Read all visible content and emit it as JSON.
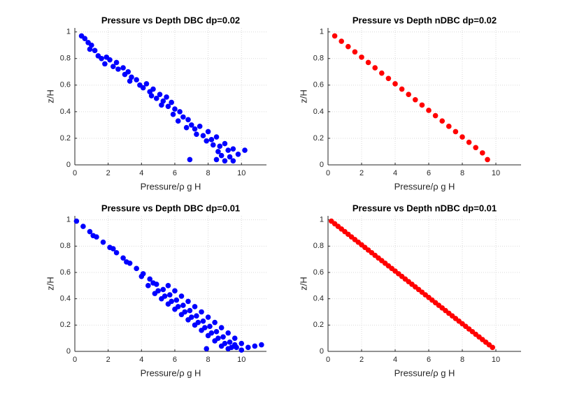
{
  "chart_data": [
    {
      "type": "scatter",
      "title": "Pressure vs Depth DBC dp=0.02",
      "xlabel": "Pressure/ρ g H",
      "ylabel": "z/H",
      "color": "#0000ff",
      "x": [
        0.4,
        0.6,
        0.8,
        1.0,
        0.9,
        1.2,
        1.4,
        1.6,
        1.9,
        2.1,
        1.8,
        2.3,
        2.5,
        2.6,
        2.9,
        3.0,
        3.2,
        3.4,
        3.3,
        3.7,
        3.9,
        4.1,
        4.3,
        4.5,
        4.7,
        4.6,
        4.9,
        5.1,
        5.3,
        5.5,
        5.2,
        5.6,
        5.8,
        6.0,
        5.9,
        6.3,
        6.5,
        6.2,
        6.8,
        7.0,
        6.7,
        7.2,
        7.5,
        7.3,
        7.7,
        8.0,
        7.9,
        8.2,
        8.5,
        8.3,
        8.7,
        9.0,
        8.6,
        9.2,
        9.5,
        8.8,
        9.3,
        9.0,
        9.5,
        8.5,
        6.9,
        10.2,
        9.8
      ],
      "values": [
        0.97,
        0.95,
        0.92,
        0.9,
        0.87,
        0.86,
        0.82,
        0.8,
        0.81,
        0.79,
        0.76,
        0.74,
        0.77,
        0.72,
        0.73,
        0.68,
        0.7,
        0.66,
        0.63,
        0.64,
        0.6,
        0.58,
        0.61,
        0.55,
        0.57,
        0.52,
        0.5,
        0.53,
        0.48,
        0.51,
        0.45,
        0.44,
        0.47,
        0.42,
        0.38,
        0.4,
        0.36,
        0.33,
        0.34,
        0.3,
        0.28,
        0.27,
        0.29,
        0.23,
        0.22,
        0.25,
        0.18,
        0.19,
        0.21,
        0.15,
        0.14,
        0.16,
        0.1,
        0.11,
        0.12,
        0.07,
        0.06,
        0.03,
        0.03,
        0.04,
        0.04,
        0.11,
        0.08
      ],
      "xlim": [
        0,
        11.5
      ],
      "ylim": [
        0,
        1.03
      ],
      "xticks": [
        0,
        2,
        4,
        6,
        8,
        10
      ],
      "yticks": [
        0,
        0.2,
        0.4,
        0.6,
        0.8,
        1
      ],
      "grid": true
    },
    {
      "type": "scatter",
      "title": "Pressure vs Depth nDBC dp=0.02",
      "xlabel": "Pressure/ρ g H",
      "ylabel": "z/H",
      "color": "#ff0000",
      "x": [
        0.4,
        0.8,
        1.2,
        1.6,
        2.0,
        2.4,
        2.8,
        3.2,
        3.6,
        4.0,
        4.4,
        4.8,
        5.2,
        5.6,
        6.0,
        6.4,
        6.8,
        7.2,
        7.6,
        8.0,
        8.4,
        8.8,
        9.2,
        9.5
      ],
      "values": [
        0.97,
        0.93,
        0.89,
        0.85,
        0.81,
        0.77,
        0.73,
        0.69,
        0.65,
        0.61,
        0.57,
        0.53,
        0.49,
        0.45,
        0.41,
        0.37,
        0.33,
        0.29,
        0.25,
        0.21,
        0.17,
        0.13,
        0.09,
        0.04
      ],
      "xlim": [
        0,
        11.5
      ],
      "ylim": [
        0,
        1.03
      ],
      "xticks": [
        0,
        2,
        4,
        6,
        8,
        10
      ],
      "yticks": [
        0,
        0.2,
        0.4,
        0.6,
        0.8,
        1
      ],
      "grid": true
    },
    {
      "type": "scatter",
      "title": "Pressure vs Depth DBC dp=0.01",
      "xlabel": "Pressure/ρ g H",
      "ylabel": "z/H",
      "color": "#0000ff",
      "x": [
        0.1,
        0.5,
        0.9,
        1.3,
        1.7,
        2.1,
        2.5,
        2.9,
        3.3,
        3.7,
        4.1,
        4.5,
        4.9,
        5.3,
        5.7,
        6.1,
        6.5,
        6.9,
        7.3,
        7.7,
        8.1,
        8.5,
        8.9,
        9.3,
        9.7,
        5.6,
        6.0,
        6.4,
        6.8,
        7.2,
        7.6,
        8.0,
        8.4,
        8.8,
        9.2,
        9.6,
        10.0,
        10.4,
        11.2,
        10.8,
        4.4,
        4.8,
        5.2,
        5.6,
        6.0,
        6.4,
        6.8,
        7.2,
        7.6,
        8.0,
        7.9,
        8.4,
        8.8,
        9.2,
        10.0,
        9.6,
        5.0,
        5.4,
        5.8,
        6.2,
        6.6,
        7.0,
        7.4,
        7.8,
        8.2,
        8.6,
        9.0,
        9.4,
        1.1,
        2.3,
        3.1,
        4.0,
        4.7
      ],
      "values": [
        0.99,
        0.95,
        0.91,
        0.87,
        0.83,
        0.79,
        0.75,
        0.71,
        0.67,
        0.63,
        0.59,
        0.55,
        0.51,
        0.47,
        0.43,
        0.39,
        0.35,
        0.31,
        0.27,
        0.23,
        0.19,
        0.15,
        0.11,
        0.07,
        0.03,
        0.5,
        0.46,
        0.42,
        0.38,
        0.34,
        0.3,
        0.26,
        0.22,
        0.18,
        0.14,
        0.1,
        0.06,
        0.03,
        0.05,
        0.04,
        0.5,
        0.44,
        0.4,
        0.36,
        0.32,
        0.28,
        0.24,
        0.2,
        0.16,
        0.12,
        0.02,
        0.08,
        0.04,
        0.02,
        0.01,
        0.05,
        0.46,
        0.42,
        0.38,
        0.34,
        0.3,
        0.26,
        0.22,
        0.18,
        0.14,
        0.1,
        0.06,
        0.03,
        0.88,
        0.78,
        0.68,
        0.57,
        0.52
      ],
      "xlim": [
        0,
        11.5
      ],
      "ylim": [
        0,
        1.03
      ],
      "xticks": [
        0,
        2,
        4,
        6,
        8,
        10
      ],
      "yticks": [
        0,
        0.2,
        0.4,
        0.6,
        0.8,
        1
      ],
      "grid": true
    },
    {
      "type": "scatter",
      "title": "Pressure vs Depth nDBC dp=0.01",
      "xlabel": "Pressure/ρ g H",
      "ylabel": "z/H",
      "color": "#ff0000",
      "x": [
        0.2,
        0.4,
        0.6,
        0.8,
        1.0,
        1.2,
        1.4,
        1.6,
        1.8,
        2.0,
        2.2,
        2.4,
        2.6,
        2.8,
        3.0,
        3.2,
        3.4,
        3.6,
        3.8,
        4.0,
        4.2,
        4.4,
        4.6,
        4.8,
        5.0,
        5.2,
        5.4,
        5.6,
        5.8,
        6.0,
        6.2,
        6.4,
        6.6,
        6.8,
        7.0,
        7.2,
        7.4,
        7.6,
        7.8,
        8.0,
        8.2,
        8.4,
        8.6,
        8.8,
        9.0,
        9.2,
        9.4,
        9.6,
        9.8
      ],
      "values": [
        0.99,
        0.97,
        0.95,
        0.93,
        0.91,
        0.89,
        0.87,
        0.85,
        0.83,
        0.81,
        0.79,
        0.77,
        0.75,
        0.73,
        0.71,
        0.69,
        0.67,
        0.65,
        0.63,
        0.61,
        0.59,
        0.57,
        0.55,
        0.53,
        0.51,
        0.49,
        0.47,
        0.45,
        0.43,
        0.41,
        0.39,
        0.37,
        0.35,
        0.33,
        0.31,
        0.29,
        0.27,
        0.25,
        0.23,
        0.21,
        0.19,
        0.17,
        0.15,
        0.13,
        0.11,
        0.09,
        0.07,
        0.05,
        0.03
      ],
      "xlim": [
        0,
        11.5
      ],
      "ylim": [
        0,
        1.03
      ],
      "xticks": [
        0,
        2,
        4,
        6,
        8,
        10
      ],
      "yticks": [
        0,
        0.2,
        0.4,
        0.6,
        0.8,
        1
      ],
      "grid": true
    }
  ]
}
